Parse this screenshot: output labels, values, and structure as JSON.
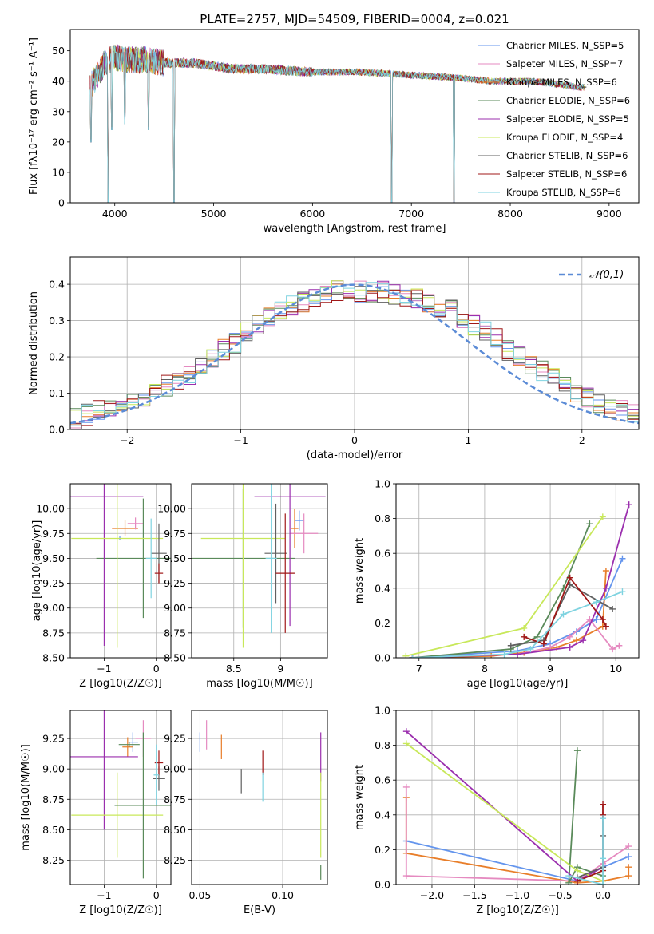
{
  "colors": [
    "#6495ed",
    "#e87e2a",
    "#e58ac0",
    "#5a8a5a",
    "#9b2fae",
    "#c8e85a",
    "#606060",
    "#a01818",
    "#7fd3e0"
  ],
  "chart_data": [
    {
      "type": "line",
      "title": "PLATE=2757, MJD=54509, FIBERID=0004, z=0.021",
      "xlabel": "wavelength [Angstrom, rest frame]",
      "ylabel": "Flux [fλ10⁻¹⁷ erg cm⁻² s⁻¹ A⁻¹]",
      "xlim": [
        3550,
        9300
      ],
      "ylim": [
        0,
        57
      ],
      "xticks": [
        4000,
        5000,
        6000,
        7000,
        8000,
        9000
      ],
      "yticks": [
        0,
        10,
        20,
        30,
        40,
        50
      ],
      "grid": false,
      "legend_position": "top-right",
      "series": [
        {
          "name": "Chabrier MILES, N_SSP=5",
          "color": "#6495ed"
        },
        {
          "name": "Salpeter MILES, N_SSP=7",
          "color": "#e58ac0"
        },
        {
          "name": "Kroupa MILES, N_SSP=6",
          "color": "#e87e2a"
        },
        {
          "name": "Chabrier ELODIE, N_SSP=6",
          "color": "#5a8a5a"
        },
        {
          "name": "Salpeter ELODIE, N_SSP=5",
          "color": "#9b2fae"
        },
        {
          "name": "Kroupa ELODIE, N_SSP=4",
          "color": "#c8e85a"
        },
        {
          "name": "Chabrier STELIB, N_SSP=6",
          "color": "#606060"
        },
        {
          "name": "Salpeter STELIB, N_SSP=6",
          "color": "#a01818"
        },
        {
          "name": "Kroupa STELIB, N_SSP=6",
          "color": "#7fd3e0"
        }
      ],
      "spectrum_envelope": {
        "x": [
          3750,
          3900,
          4000,
          4100,
          4300,
          4500,
          4800,
          5000,
          5200,
          5500,
          6000,
          6500,
          7000,
          7500,
          7800,
          8000,
          8200,
          8500,
          8700
        ],
        "y": [
          38,
          46,
          48,
          47,
          47,
          46,
          46,
          45,
          44,
          44,
          43,
          43,
          42,
          41,
          40,
          40,
          40,
          39,
          38
        ]
      },
      "dips": [
        {
          "x": 3760,
          "y": 20
        },
        {
          "x": 3935,
          "y": 0
        },
        {
          "x": 3970,
          "y": 24
        },
        {
          "x": 4100,
          "y": 26
        },
        {
          "x": 4340,
          "y": 24
        },
        {
          "x": 4600,
          "y": 0
        },
        {
          "x": 6800,
          "y": 0
        },
        {
          "x": 7430,
          "y": 0
        }
      ]
    },
    {
      "type": "histogram",
      "xlabel": "(data-model)/error",
      "ylabel": "Normed distribution",
      "xlim": [
        -2.5,
        2.5
      ],
      "ylim": [
        0,
        0.475
      ],
      "xticks": [
        -2,
        -1,
        0,
        1,
        2
      ],
      "yticks": [
        0.0,
        0.1,
        0.2,
        0.3,
        0.4
      ],
      "grid": true,
      "legend_position": "top-right",
      "legend": "𝒩(0,1)",
      "bin_edges": [
        -2.5,
        -2.4,
        -2.3,
        -2.2,
        -2.1,
        -2.0,
        -1.9,
        -1.8,
        -1.7,
        -1.6,
        -1.5,
        -1.4,
        -1.3,
        -1.2,
        -1.1,
        -1.0,
        -0.9,
        -0.8,
        -0.7,
        -0.6,
        -0.5,
        -0.4,
        -0.3,
        -0.2,
        -0.1,
        0.0,
        0.1,
        0.2,
        0.3,
        0.4,
        0.5,
        0.6,
        0.7,
        0.8,
        0.9,
        1.0,
        1.1,
        1.2,
        1.3,
        1.4,
        1.5,
        1.6,
        1.7,
        1.8,
        1.9,
        2.0,
        2.1,
        2.2,
        2.3,
        2.4,
        2.5
      ],
      "approx_density": [
        0.03,
        0.04,
        0.05,
        0.06,
        0.07,
        0.08,
        0.09,
        0.1,
        0.12,
        0.13,
        0.15,
        0.17,
        0.19,
        0.22,
        0.24,
        0.27,
        0.29,
        0.31,
        0.33,
        0.34,
        0.35,
        0.36,
        0.37,
        0.38,
        0.38,
        0.38,
        0.38,
        0.38,
        0.37,
        0.37,
        0.36,
        0.35,
        0.34,
        0.33,
        0.31,
        0.29,
        0.27,
        0.25,
        0.22,
        0.2,
        0.18,
        0.16,
        0.14,
        0.12,
        0.1,
        0.09,
        0.07,
        0.06,
        0.05,
        0.04
      ]
    },
    {
      "type": "scatter",
      "subtype": "errorbar",
      "xlabel": "Z [log10(Z/Z☉)]",
      "ylabel": "age  [log10(age/yr)]",
      "xlim": [
        -1.65,
        0.28
      ],
      "ylim": [
        8.5,
        10.25
      ],
      "xticks": [
        -1,
        0
      ],
      "yticks": [
        8.5,
        8.75,
        9.0,
        9.25,
        9.5,
        9.75,
        10.0
      ],
      "ytick_labels": [
        "8.50",
        "8.75",
        "9.00",
        "9.25",
        "9.50",
        "9.75",
        "10.00"
      ],
      "grid": true,
      "points": [
        {
          "x": -0.7,
          "y": 9.7,
          "xerr": 0.02,
          "yerr": 0.02,
          "color": "#6495ed"
        },
        {
          "x": -0.6,
          "y": 9.8,
          "xerr": 0.25,
          "yerr": 0.08,
          "color": "#e87e2a"
        },
        {
          "x": -0.4,
          "y": 9.85,
          "xerr": 0.15,
          "yerr": 0.06,
          "color": "#e58ac0"
        },
        {
          "x": -0.25,
          "y": 9.5,
          "xerr": 0.9,
          "yerr": 0.6,
          "color": "#5a8a5a"
        },
        {
          "x": -1.0,
          "y": 10.12,
          "xerr": 0.75,
          "yerr": 1.5,
          "color": "#9b2fae"
        },
        {
          "x": -0.75,
          "y": 9.7,
          "xerr": 0.88,
          "yerr": 1.1,
          "color": "#c8e85a"
        },
        {
          "x": 0.05,
          "y": 9.55,
          "xerr": 0.15,
          "yerr": 0.3,
          "color": "#606060"
        },
        {
          "x": 0.05,
          "y": 9.35,
          "xerr": 0.08,
          "yerr": 0.1,
          "color": "#a01818"
        },
        {
          "x": -0.1,
          "y": 9.5,
          "xerr": 0.1,
          "yerr": 0.4,
          "color": "#7fd3e0"
        }
      ]
    },
    {
      "type": "scatter",
      "subtype": "errorbar",
      "xlabel": "mass [log10(M/M☉)]",
      "ylabel": "",
      "xlim": [
        8.05,
        9.5
      ],
      "ylim": [
        8.5,
        10.25
      ],
      "xticks": [
        8.5,
        9.0
      ],
      "yticks": [
        8.5,
        8.75,
        9.0,
        9.25,
        9.5,
        9.75,
        10.0
      ],
      "ytick_labels": [
        "8.50",
        "8.75",
        "9.00",
        "9.25",
        "9.50",
        "9.75",
        "10.00"
      ],
      "grid": true,
      "points": [
        {
          "x": 9.2,
          "y": 9.88,
          "xerr": 0.05,
          "yerr": 0.1,
          "color": "#6495ed"
        },
        {
          "x": 9.15,
          "y": 9.8,
          "xerr": 0.04,
          "yerr": 0.2,
          "color": "#e87e2a"
        },
        {
          "x": 9.25,
          "y": 9.75,
          "xerr": 0.15,
          "yerr": 0.2,
          "color": "#e58ac0"
        },
        {
          "x": 8.6,
          "y": 9.5,
          "xerr": 0.55,
          "yerr": 0.7,
          "color": "#5a8a5a"
        },
        {
          "x": 9.1,
          "y": 10.12,
          "xerr": 0.38,
          "yerr": 1.3,
          "color": "#9b2fae"
        },
        {
          "x": 8.6,
          "y": 9.7,
          "xerr": 0.45,
          "yerr": 1.1,
          "color": "#c8e85a"
        },
        {
          "x": 8.95,
          "y": 9.55,
          "xerr": 0.12,
          "yerr": 0.5,
          "color": "#606060"
        },
        {
          "x": 9.05,
          "y": 9.35,
          "xerr": 0.1,
          "yerr": 0.6,
          "color": "#a01818"
        },
        {
          "x": 8.9,
          "y": 9.5,
          "xerr": 0.06,
          "yerr": 0.75,
          "color": "#7fd3e0"
        }
      ]
    },
    {
      "type": "line",
      "xlabel": "age  [log10(age/yr)]",
      "ylabel": "mass weight",
      "xlim": [
        6.65,
        10.35
      ],
      "ylim": [
        0,
        1.0
      ],
      "xticks": [
        7,
        8,
        9,
        10
      ],
      "yticks": [
        0.0,
        0.2,
        0.4,
        0.6,
        0.8,
        1.0
      ],
      "grid": true,
      "series": [
        {
          "color": "#6495ed",
          "x": [
            6.9,
            8.5,
            9.0,
            9.4,
            9.7,
            10.1
          ],
          "y": [
            0.0,
            0.04,
            0.08,
            0.15,
            0.22,
            0.57
          ]
        },
        {
          "color": "#e87e2a",
          "x": [
            6.9,
            8.1,
            8.6,
            9.1,
            9.4,
            9.8,
            9.85
          ],
          "y": [
            0.0,
            0.01,
            0.03,
            0.06,
            0.1,
            0.18,
            0.5
          ]
        },
        {
          "color": "#e58ac0",
          "x": [
            8.5,
            9.0,
            9.3,
            9.6,
            9.95,
            10.05
          ],
          "y": [
            0.02,
            0.06,
            0.12,
            0.22,
            0.05,
            0.07
          ]
        },
        {
          "color": "#5a8a5a",
          "x": [
            6.9,
            8.4,
            8.8,
            9.2,
            9.6
          ],
          "y": [
            0.0,
            0.05,
            0.12,
            0.4,
            0.77
          ]
        },
        {
          "color": "#9b2fae",
          "x": [
            6.9,
            8.5,
            9.3,
            9.5,
            9.85,
            10.2
          ],
          "y": [
            0.0,
            0.02,
            0.06,
            0.1,
            0.4,
            0.88
          ]
        },
        {
          "color": "#c8e85a",
          "x": [
            6.8,
            8.6,
            9.8
          ],
          "y": [
            0.01,
            0.17,
            0.81
          ]
        },
        {
          "color": "#606060",
          "x": [
            8.4,
            8.9,
            9.3,
            9.95
          ],
          "y": [
            0.07,
            0.1,
            0.42,
            0.28
          ]
        },
        {
          "color": "#a01818",
          "x": [
            8.6,
            8.9,
            9.3,
            9.8,
            9.85
          ],
          "y": [
            0.12,
            0.08,
            0.46,
            0.22,
            0.18
          ]
        },
        {
          "color": "#7fd3e0",
          "x": [
            6.9,
            8.3,
            8.7,
            9.2,
            9.7,
            10.1
          ],
          "y": [
            0.0,
            0.02,
            0.05,
            0.25,
            0.32,
            0.38
          ]
        }
      ]
    },
    {
      "type": "scatter",
      "subtype": "errorbar",
      "xlabel": "Z [log10(Z/Z☉)]",
      "ylabel": "mass [log10(M/M☉)]",
      "xlim": [
        -1.65,
        0.28
      ],
      "ylim": [
        8.05,
        9.48
      ],
      "xticks": [
        -1,
        0
      ],
      "yticks": [
        8.25,
        8.5,
        8.75,
        9.0,
        9.25
      ],
      "ytick_labels": [
        "8.25",
        "8.50",
        "8.75",
        "9.00",
        "9.25"
      ],
      "grid": true,
      "points": [
        {
          "x": -0.45,
          "y": 9.22,
          "xerr": 0.1,
          "yerr": 0.08,
          "color": "#6495ed"
        },
        {
          "x": -0.55,
          "y": 9.18,
          "xerr": 0.1,
          "yerr": 0.08,
          "color": "#e87e2a"
        },
        {
          "x": -0.25,
          "y": 9.25,
          "xerr": 0.15,
          "yerr": 0.15,
          "color": "#e58ac0"
        },
        {
          "x": -0.52,
          "y": 9.2,
          "xerr": 0.2,
          "yerr": 0.02,
          "color": "#5a8a5a"
        },
        {
          "x": -1.0,
          "y": 9.1,
          "xerr": 0.65,
          "yerr": 0.6,
          "color": "#9b2fae"
        },
        {
          "x": -0.75,
          "y": 8.62,
          "xerr": 0.88,
          "yerr": 0.35,
          "color": "#c8e85a"
        },
        {
          "x": 0.05,
          "y": 8.92,
          "xerr": 0.12,
          "yerr": 0.1,
          "color": "#606060"
        },
        {
          "x": 0.05,
          "y": 9.05,
          "xerr": 0.08,
          "yerr": 0.1,
          "color": "#a01818"
        },
        {
          "x": 0.0,
          "y": 8.95,
          "xerr": 0.05,
          "yerr": 0.25,
          "color": "#7fd3e0"
        },
        {
          "x": -0.25,
          "y": 8.7,
          "xerr": 0.55,
          "yerr": 0.6,
          "color": "#5a8a5a"
        }
      ]
    },
    {
      "type": "scatter",
      "subtype": "errorbar",
      "xlabel": "E(B-V)",
      "ylabel": "",
      "xlim": [
        0.045,
        0.127
      ],
      "ylim": [
        8.05,
        9.48
      ],
      "xticks": [
        0.05,
        0.1
      ],
      "xtick_labels": [
        "0.05",
        "0.10"
      ],
      "yticks": [
        8.25,
        8.5,
        8.75,
        9.0,
        9.25
      ],
      "ytick_labels": [
        "8.25",
        "8.50",
        "8.75",
        "9.00",
        "9.25"
      ],
      "grid": true,
      "points": [
        {
          "x": 0.05,
          "y": 9.22,
          "xerr": 0.0,
          "yerr": 0.08,
          "color": "#6495ed"
        },
        {
          "x": 0.063,
          "y": 9.18,
          "xerr": 0.0,
          "yerr": 0.1,
          "color": "#e87e2a"
        },
        {
          "x": 0.054,
          "y": 9.28,
          "xerr": 0.0,
          "yerr": 0.12,
          "color": "#e58ac0"
        },
        {
          "x": 0.123,
          "y": 8.15,
          "xerr": 0.0,
          "yerr": 0.06,
          "color": "#5a8a5a"
        },
        {
          "x": 0.123,
          "y": 9.1,
          "xerr": 0.0,
          "yerr": 0.2,
          "color": "#9b2fae"
        },
        {
          "x": 0.123,
          "y": 8.62,
          "xerr": 0.0,
          "yerr": 0.35,
          "color": "#c8e85a"
        },
        {
          "x": 0.075,
          "y": 8.9,
          "xerr": 0.0,
          "yerr": 0.1,
          "color": "#606060"
        },
        {
          "x": 0.088,
          "y": 9.05,
          "xerr": 0.0,
          "yerr": 0.1,
          "color": "#a01818"
        },
        {
          "x": 0.088,
          "y": 8.85,
          "xerr": 0.0,
          "yerr": 0.12,
          "color": "#7fd3e0"
        }
      ]
    },
    {
      "type": "line",
      "xlabel": "Z [log10(Z/Z☉)]",
      "ylabel": "mass weight",
      "xlim": [
        -2.42,
        0.42
      ],
      "ylim": [
        0,
        1.0
      ],
      "xticks": [
        -2.0,
        -1.5,
        -1.0,
        -0.5,
        0.0
      ],
      "xtick_labels": [
        "−2.0",
        "−1.5",
        "−1.0",
        "−0.5",
        "0.0"
      ],
      "yticks": [
        0.0,
        0.2,
        0.4,
        0.6,
        0.8,
        1.0
      ],
      "grid": true,
      "series": [
        {
          "color": "#6495ed",
          "x": [
            -2.3,
            -0.3,
            0.0,
            0.3
          ],
          "y": [
            0.25,
            0.02,
            0.1,
            0.16
          ]
        },
        {
          "color": "#e87e2a",
          "x": [
            -2.3,
            -2.3,
            -0.3,
            0.0,
            0.3,
            0.3
          ],
          "y": [
            0.5,
            0.18,
            0.01,
            0.02,
            0.05,
            0.1
          ]
        },
        {
          "color": "#e58ac0",
          "x": [
            -2.3,
            -2.3,
            -0.3,
            0.0,
            0.3
          ],
          "y": [
            0.56,
            0.05,
            0.02,
            0.12,
            0.22
          ]
        },
        {
          "color": "#5a8a5a",
          "x": [
            -0.3,
            -0.4,
            -0.3,
            0.0
          ],
          "y": [
            0.77,
            0.01,
            0.1,
            0.05
          ]
        },
        {
          "color": "#9b2fae",
          "x": [
            -2.3,
            -0.3,
            0.0
          ],
          "y": [
            0.88,
            0.02,
            0.1
          ]
        },
        {
          "color": "#c8e85a",
          "x": [
            -2.3,
            -0.3,
            0.0
          ],
          "y": [
            0.81,
            0.08,
            0.02
          ]
        },
        {
          "color": "#606060",
          "x": [
            -0.3,
            -0.3,
            0.0,
            0.0
          ],
          "y": [
            0.02,
            0.04,
            0.1,
            0.28
          ]
        },
        {
          "color": "#a01818",
          "x": [
            -0.3,
            0.0,
            0.0,
            0.0
          ],
          "y": [
            0.02,
            0.08,
            0.46,
            0.4
          ]
        },
        {
          "color": "#7fd3e0",
          "x": [
            -0.4,
            0.0,
            0.0,
            0.0
          ],
          "y": [
            0.05,
            0.0,
            0.15,
            0.38
          ]
        }
      ]
    }
  ]
}
